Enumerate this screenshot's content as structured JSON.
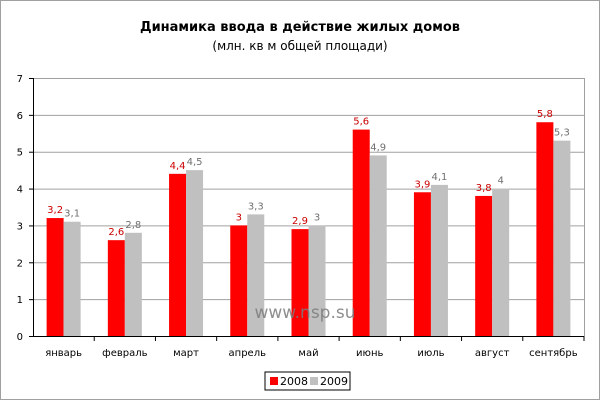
{
  "chart_data": {
    "type": "bar",
    "title": "Динамика ввода в действие жилых домов",
    "subtitle": "(млн. кв м общей площади)",
    "categories": [
      "январь",
      "февраль",
      "март",
      "апрель",
      "май",
      "июнь",
      "июль",
      "август",
      "сентябрь"
    ],
    "series": [
      {
        "name": "2008",
        "color": "#ff0000",
        "label_color": "#cc0000",
        "values": [
          3.2,
          2.6,
          4.4,
          3,
          2.9,
          5.6,
          3.9,
          3.8,
          5.8
        ],
        "labels": [
          "3,2",
          "2,6",
          "4,4",
          "3",
          "2,9",
          "5,6",
          "3,9",
          "3,8",
          "5,8"
        ]
      },
      {
        "name": "2009",
        "color": "#c0c0c0",
        "label_color": "#707070",
        "values": [
          3.1,
          2.8,
          4.5,
          3.3,
          3,
          4.9,
          4.1,
          4,
          5.3
        ],
        "labels": [
          "3,1",
          "2,8",
          "4,5",
          "3,3",
          "3",
          "4,9",
          "4,1",
          "4",
          "5,3"
        ]
      }
    ],
    "ylim": [
      0,
      7
    ],
    "yticks": [
      "0",
      "1",
      "2",
      "3",
      "4",
      "5",
      "6",
      "7"
    ],
    "grid": true,
    "legend": "bottom",
    "watermark": "www.nsp.su"
  }
}
